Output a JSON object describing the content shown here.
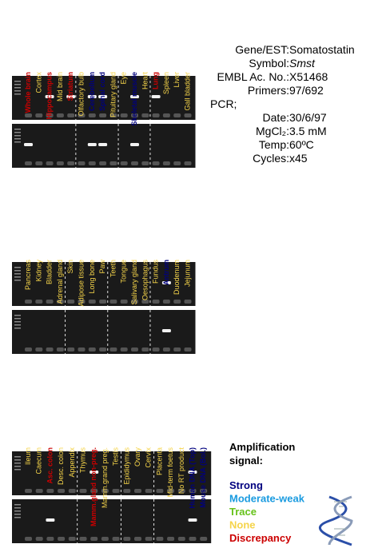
{
  "panels": [
    {
      "lanes": [
        {
          "label": "Whole brain",
          "color": "#cc0000"
        },
        {
          "label": "Cortex",
          "color": "#f5d44a"
        },
        {
          "label": "Hippocampus",
          "color": "#cc0000"
        },
        {
          "label": "Mid brain",
          "color": "#f5d44a"
        },
        {
          "label": "Striatum",
          "color": "#cc0000"
        },
        {
          "label": "Olfactory bulb",
          "color": "#f5d44a"
        },
        {
          "label": "Cerebellum",
          "color": "#00007f"
        },
        {
          "label": "Spinal cord",
          "color": "#00007f"
        },
        {
          "label": "Pituitary gland",
          "color": "#f5d44a"
        },
        {
          "label": "Eye",
          "color": "#f5d44a"
        },
        {
          "label": "Skeletal muscle",
          "color": "#00007f"
        },
        {
          "label": "Heart",
          "color": "#f5d44a"
        },
        {
          "label": "Lung",
          "color": "#cc0000"
        },
        {
          "label": "Spleen",
          "color": "#f5d44a"
        },
        {
          "label": "Liver",
          "color": "#f5d44a"
        },
        {
          "label": "Gall bladder",
          "color": "#f5d44a"
        }
      ]
    },
    {
      "lanes": [
        {
          "label": "Pancreas",
          "color": "#f5d44a"
        },
        {
          "label": "Kidney",
          "color": "#f5d44a"
        },
        {
          "label": "Bladder",
          "color": "#f5d44a"
        },
        {
          "label": "Adrenal gland",
          "color": "#f5d44a"
        },
        {
          "label": "Skin",
          "color": "#f5d44a"
        },
        {
          "label": "Adipose tissue",
          "color": "#f5d44a"
        },
        {
          "label": "Long bone",
          "color": "#f5d44a"
        },
        {
          "label": "Paw",
          "color": "#f5d44a"
        },
        {
          "label": "Teeth",
          "color": "#f5d44a"
        },
        {
          "label": "Tongue",
          "color": "#f5d44a"
        },
        {
          "label": "Salivary gland",
          "color": "#f5d44a"
        },
        {
          "label": "Oesophagus",
          "color": "#f5d44a"
        },
        {
          "label": "Fundus",
          "color": "#f5d44a"
        },
        {
          "label": "Antrum",
          "color": "#00007f"
        },
        {
          "label": "Duodenum",
          "color": "#f5d44a"
        },
        {
          "label": "Jejunum",
          "color": "#f5d44a"
        }
      ]
    },
    {
      "lanes": [
        {
          "label": "Ileum",
          "color": "#f5d44a"
        },
        {
          "label": "Caecum",
          "color": "#f5d44a"
        },
        {
          "label": "Asc. colon",
          "color": "#cc0000"
        },
        {
          "label": "Desc. colon",
          "color": "#f5d44a"
        },
        {
          "label": "Appendix",
          "color": "#f5d44a"
        },
        {
          "label": "Thymus",
          "color": "#f5d44a"
        },
        {
          "label": "Mamm.gland non-preg.",
          "color": "#cc0000"
        },
        {
          "label": "Mamm.grand preg.",
          "color": "#f5d44a"
        },
        {
          "label": "Testis",
          "color": "#f5d44a"
        },
        {
          "label": "Epididymus",
          "color": "#f5d44a"
        },
        {
          "label": "Ovary",
          "color": "#f5d44a"
        },
        {
          "label": "Cervix",
          "color": "#f5d44a"
        },
        {
          "label": "Placenta",
          "color": "#f5d44a"
        },
        {
          "label": "Mid-term foetus",
          "color": "#f5d44a"
        },
        {
          "label": "No RT product",
          "color": "#f5d44a"
        },
        {
          "label": "Human DNA (Top)",
          "color": "#00007f"
        },
        {
          "label": "Mouse DNA (Bol.)",
          "color": "#00007f"
        }
      ]
    }
  ],
  "info": {
    "rows": [
      {
        "label": "Gene/EST:",
        "value": "Somatostatin"
      },
      {
        "label": "Symbol:",
        "value": "Smst"
      },
      {
        "label": "EMBL Ac. No.:",
        "value": "X51468"
      },
      {
        "label": "Primers:",
        "value": "97/692"
      },
      {
        "label": "PCR;"
      },
      {
        "label": "Date:",
        "value": "30/6/97"
      },
      {
        "label": "MgCl₂:",
        "value": "3.5 mM"
      },
      {
        "label": "Temp:",
        "value": "60ºC"
      },
      {
        "label": "Cycles:",
        "value": "x45"
      }
    ]
  },
  "legend": {
    "title": [
      "Amplification",
      "signal:"
    ],
    "items": [
      {
        "name": "Strong",
        "color": "#00007f"
      },
      {
        "name": "Moderate-weak",
        "color": "#1a9be0"
      },
      {
        "name": "Trace",
        "color": "#66c21a"
      },
      {
        "name": "None",
        "color": "#f5d44a"
      },
      {
        "name": "Discrepancy",
        "color": "#cc0000"
      }
    ]
  }
}
